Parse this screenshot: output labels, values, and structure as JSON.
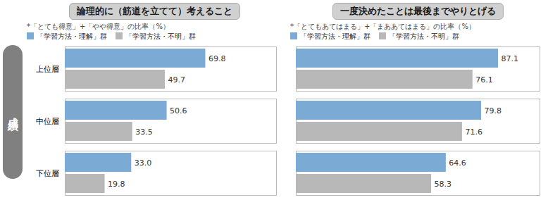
{
  "chart_data": [
    {
      "type": "bar",
      "orientation": "horizontal",
      "title": "論理的に（筋道を立てて）考えること",
      "subtitle": "*「とても得意」+「やや得意」の比率（%）",
      "ylabel": "成績",
      "categories": [
        "上位層",
        "中位層",
        "下位層"
      ],
      "series": [
        {
          "name": "「学習方法・理解」群",
          "color": "#7baad4",
          "values": [
            69.8,
            50.6,
            33.0
          ],
          "value_labels": [
            "69.8",
            "50.6",
            "33.0"
          ]
        },
        {
          "name": "「学習方法・不明」群",
          "color": "#b8b8b8",
          "values": [
            49.7,
            33.5,
            19.8
          ]
        }
      ],
      "xlim": [
        0,
        105
      ],
      "grid": false,
      "legend": "top",
      "data_labels": true,
      "tick_labels": "y"
    },
    {
      "type": "bar",
      "orientation": "horizontal",
      "title": "一度決めたことは最後までやりとげる",
      "subtitle": "*「とてもあてはまる」+「まああてはまる」の比率（%）",
      "categories": [
        "上位層",
        "中位層",
        "下位層"
      ],
      "series": [
        {
          "name": "「学習方法・理解」群",
          "color": "#7baad4",
          "values": [
            87.1,
            79.8,
            64.6
          ]
        },
        {
          "name": "「学習方法・不明」群",
          "color": "#b8b8b8",
          "values": [
            76.1,
            71.6,
            58.3
          ]
        }
      ],
      "xlim": [
        0,
        105
      ],
      "grid": false,
      "legend": "top",
      "data_labels": true,
      "tick_labels": false
    }
  ]
}
